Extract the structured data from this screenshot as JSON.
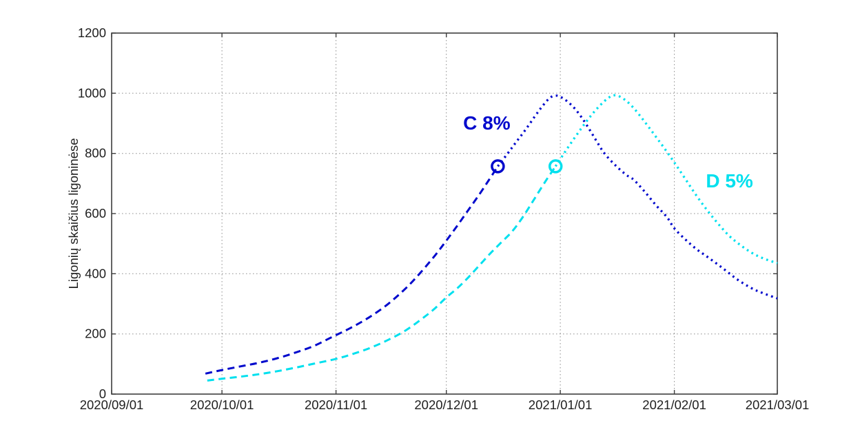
{
  "chart_data": {
    "type": "line",
    "title": "",
    "xlabel": "",
    "ylabel": "Ligonių skaičius ligoninėse",
    "background": "#ffffff",
    "grid": true,
    "grid_style": "dotted",
    "ylim": [
      0,
      1200
    ],
    "yticks": [
      0,
      200,
      400,
      600,
      800,
      1000,
      1200
    ],
    "xlim_days": [
      0,
      181
    ],
    "x_axis_unit": "date",
    "xticks": [
      {
        "day": 0,
        "label": "2020/09/01"
      },
      {
        "day": 30,
        "label": "2020/10/01"
      },
      {
        "day": 61,
        "label": "2020/11/01"
      },
      {
        "day": 91,
        "label": "2020/12/01"
      },
      {
        "day": 122,
        "label": "2021/01/01"
      },
      {
        "day": 153,
        "label": "2021/02/01"
      },
      {
        "day": 181,
        "label": "2021/03/01"
      }
    ],
    "legend_position": "inline-labels",
    "series": [
      {
        "name": "C 8%",
        "color": "#0008cc",
        "style_before_marker": "dashed",
        "style_after_marker": "dotted",
        "marker": {
          "shape": "open-circle",
          "day": 105,
          "value": 757
        },
        "label_pos": {
          "day": 102,
          "value": 900
        },
        "peak": {
          "day": 120,
          "value": 992
        },
        "points_dashed": [
          [
            25.5,
            68
          ],
          [
            30,
            80
          ],
          [
            35,
            92
          ],
          [
            40,
            104
          ],
          [
            45,
            119
          ],
          [
            50,
            138
          ],
          [
            55,
            160
          ],
          [
            60,
            190
          ],
          [
            65,
            220
          ],
          [
            70,
            255
          ],
          [
            75,
            298
          ],
          [
            80,
            352
          ],
          [
            84,
            404
          ],
          [
            88,
            462
          ],
          [
            91,
            510
          ],
          [
            94,
            560
          ],
          [
            97,
            612
          ],
          [
            100,
            664
          ],
          [
            102.5,
            710
          ],
          [
            105,
            757
          ]
        ],
        "points_dotted": [
          [
            105,
            757
          ],
          [
            107.7,
            800
          ],
          [
            110,
            838
          ],
          [
            112.5,
            878
          ],
          [
            115,
            922
          ],
          [
            117,
            955
          ],
          [
            119,
            983
          ],
          [
            120.5,
            992
          ],
          [
            122,
            988
          ],
          [
            124,
            972
          ],
          [
            126,
            948
          ],
          [
            128,
            916
          ],
          [
            130,
            878
          ],
          [
            132,
            838
          ],
          [
            134,
            800
          ],
          [
            137,
            760
          ],
          [
            140,
            728
          ],
          [
            142,
            712
          ],
          [
            145,
            672
          ],
          [
            148,
            628
          ],
          [
            151,
            588
          ],
          [
            153,
            551
          ],
          [
            156,
            514
          ],
          [
            159,
            482
          ],
          [
            162,
            456
          ],
          [
            166,
            420
          ],
          [
            170,
            382
          ],
          [
            174,
            352
          ],
          [
            177,
            336
          ],
          [
            181,
            318
          ]
        ]
      },
      {
        "name": "D 5%",
        "color": "#00e0ee",
        "style_before_marker": "dashed",
        "style_after_marker": "dotted",
        "marker": {
          "shape": "open-circle",
          "day": 120.7,
          "value": 757
        },
        "label_pos": {
          "day": 168,
          "value": 708
        },
        "peak": {
          "day": 136.5,
          "value": 993
        },
        "points_dashed": [
          [
            26,
            45
          ],
          [
            30,
            51
          ],
          [
            35,
            58
          ],
          [
            40,
            66
          ],
          [
            45,
            76
          ],
          [
            50,
            88
          ],
          [
            55,
            101
          ],
          [
            61,
            117
          ],
          [
            65,
            131
          ],
          [
            70,
            152
          ],
          [
            75,
            179
          ],
          [
            80,
            212
          ],
          [
            85,
            256
          ],
          [
            88,
            286
          ],
          [
            91,
            321
          ],
          [
            94,
            352
          ],
          [
            97,
            388
          ],
          [
            100,
            428
          ],
          [
            103,
            468
          ],
          [
            106,
            505
          ],
          [
            109,
            542
          ],
          [
            112,
            592
          ],
          [
            115,
            650
          ],
          [
            118,
            708
          ],
          [
            120.7,
            757
          ]
        ],
        "points_dotted": [
          [
            120.7,
            757
          ],
          [
            123,
            800
          ],
          [
            125.5,
            845
          ],
          [
            128,
            888
          ],
          [
            130.5,
            928
          ],
          [
            133,
            962
          ],
          [
            135,
            984
          ],
          [
            136.5,
            993
          ],
          [
            138,
            990
          ],
          [
            140,
            974
          ],
          [
            142,
            950
          ],
          [
            144,
            920
          ],
          [
            146,
            888
          ],
          [
            148,
            855
          ],
          [
            150,
            822
          ],
          [
            153,
            770
          ],
          [
            156,
            715
          ],
          [
            159,
            660
          ],
          [
            162,
            610
          ],
          [
            165,
            565
          ],
          [
            168,
            525
          ],
          [
            171,
            495
          ],
          [
            174,
            470
          ],
          [
            177,
            452
          ],
          [
            181,
            435
          ]
        ]
      }
    ]
  }
}
